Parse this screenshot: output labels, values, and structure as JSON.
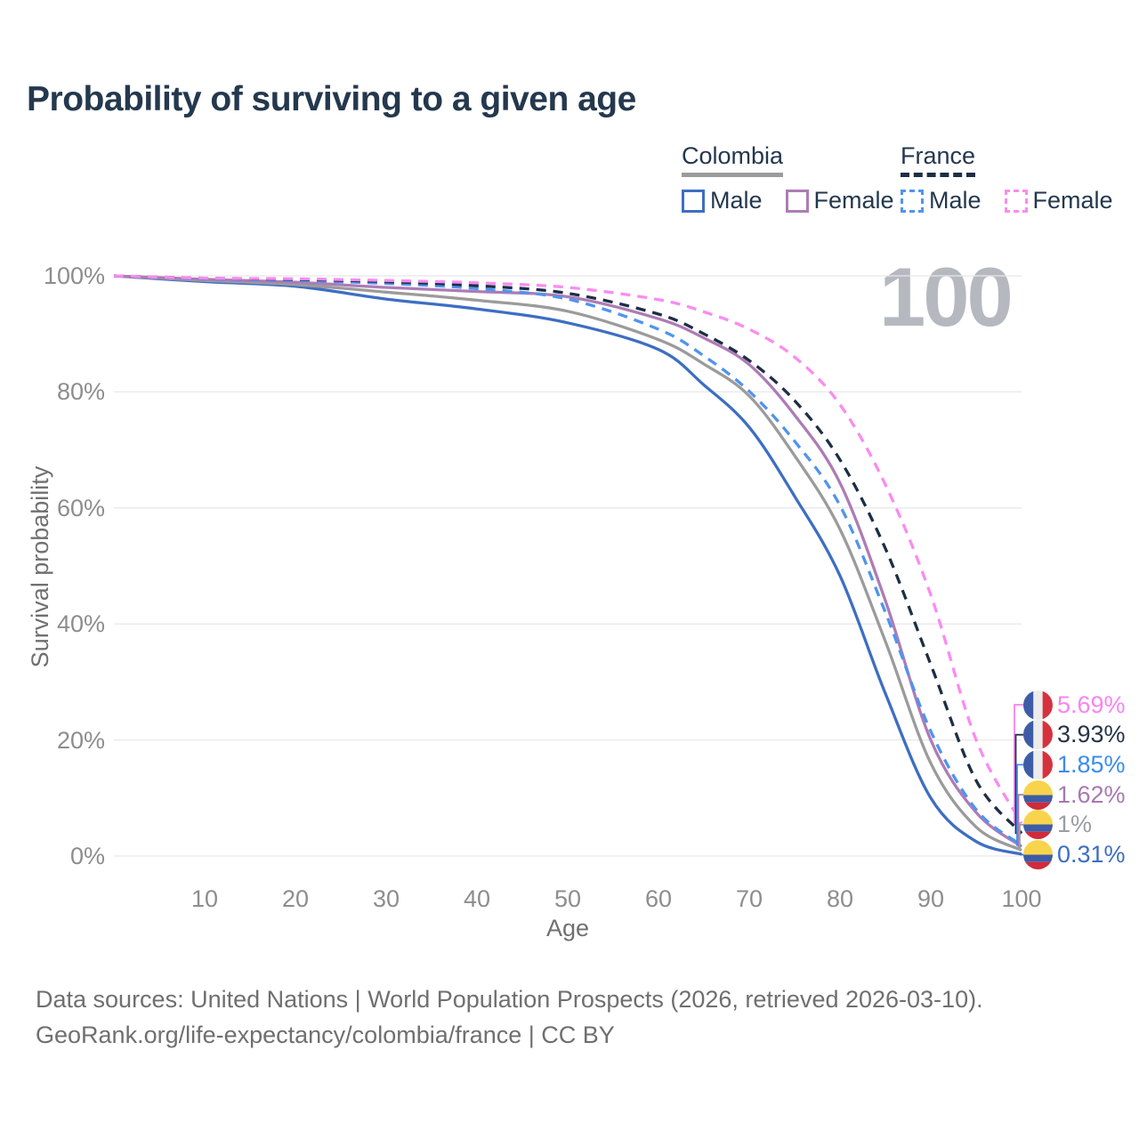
{
  "title": "Probability of surviving to a given age",
  "watermark": "100",
  "legend": {
    "groups": [
      {
        "label": "Colombia",
        "underline_color": "#9b9b9b",
        "underline_dashed": false,
        "items": [
          {
            "label": "Male",
            "color": "#3d6ec3",
            "dashed": false
          },
          {
            "label": "Female",
            "color": "#ad7cb5",
            "dashed": false
          }
        ]
      },
      {
        "label": "France",
        "underline_color": "#1d2e45",
        "underline_dashed": true,
        "items": [
          {
            "label": "Male",
            "color": "#4f94f0",
            "dashed": true
          },
          {
            "label": "Female",
            "color": "#fb8bf1",
            "dashed": true
          }
        ]
      }
    ]
  },
  "chart_data": {
    "type": "line",
    "title": "Probability of surviving to a given age",
    "xlabel": "Age",
    "ylabel": "Survival probability",
    "xlim": [
      0,
      100
    ],
    "ylim": [
      0,
      100
    ],
    "grid": "horizontal-only",
    "legend_position": "top-right",
    "x_ticks": [
      10,
      20,
      30,
      40,
      50,
      60,
      70,
      80,
      90,
      100
    ],
    "y_tick_values": [
      0,
      20,
      40,
      60,
      80,
      100
    ],
    "y_tick_labels": [
      "0%",
      "20%",
      "40%",
      "60%",
      "80%",
      "100%"
    ],
    "x": [
      0,
      10,
      20,
      30,
      40,
      50,
      60,
      65,
      70,
      75,
      80,
      85,
      90,
      95,
      100
    ],
    "series": [
      {
        "name": "Colombia Male",
        "country": "Colombia",
        "sex": "Male",
        "color": "#3d6ec3",
        "dashed": false,
        "values": [
          100,
          99.0,
          98.2,
          96.0,
          94.3,
          91.9,
          87.3,
          81.2,
          73.9,
          62.0,
          48.3,
          28.0,
          10.0,
          2.5,
          0.31
        ]
      },
      {
        "name": "Colombia Total",
        "country": "Colombia",
        "sex": "Both",
        "color": "#9b9b9b",
        "dashed": false,
        "values": [
          100,
          99.2,
          98.5,
          97.2,
          95.8,
          93.9,
          89.0,
          84.8,
          79.3,
          69.0,
          56.3,
          37.0,
          16.0,
          5.0,
          1.0
        ]
      },
      {
        "name": "Colombia Female",
        "country": "Colombia",
        "sex": "Female",
        "color": "#ad7cb5",
        "dashed": false,
        "values": [
          100,
          99.4,
          98.9,
          98.0,
          97.3,
          96.4,
          92.6,
          89.3,
          84.7,
          76.0,
          64.3,
          44.0,
          20.0,
          7.5,
          1.62
        ]
      },
      {
        "name": "France Male",
        "country": "France",
        "sex": "Male",
        "color": "#4f94f0",
        "dashed": true,
        "values": [
          100,
          99.5,
          99.2,
          98.7,
          97.8,
          96.0,
          90.8,
          86.2,
          80.1,
          71.5,
          60.4,
          42.0,
          21.5,
          8.0,
          1.85
        ]
      },
      {
        "name": "France Total",
        "country": "France",
        "sex": "Both",
        "color": "#1d2e45",
        "dashed": true,
        "values": [
          100,
          99.6,
          99.4,
          99.0,
          98.3,
          97.0,
          93.4,
          90.0,
          85.4,
          78.5,
          68.3,
          53.0,
          33.0,
          13.0,
          3.93
        ]
      },
      {
        "name": "France Female",
        "country": "France",
        "sex": "Female",
        "color": "#fb8bf1",
        "dashed": true,
        "values": [
          100,
          99.6,
          99.5,
          99.2,
          98.8,
          98.0,
          95.9,
          93.8,
          90.8,
          86.0,
          77.8,
          64.0,
          45.0,
          20.0,
          5.69
        ]
      }
    ],
    "end_labels": [
      {
        "flag": "france",
        "label": "5.69%",
        "value": 5.69,
        "color": "#f884ef",
        "series": "France Female"
      },
      {
        "flag": "france",
        "label": "3.93%",
        "value": 3.93,
        "color": "#253447",
        "series": "France Total"
      },
      {
        "flag": "france",
        "label": "1.85%",
        "value": 1.85,
        "color": "#3b8bf0",
        "series": "France Male"
      },
      {
        "flag": "colombia",
        "label": "1.62%",
        "value": 1.62,
        "color": "#a878b0",
        "series": "Colombia Female"
      },
      {
        "flag": "colombia",
        "label": "1%",
        "value": 1.0,
        "color": "#9b9ea2",
        "series": "Colombia Total"
      },
      {
        "flag": "colombia",
        "label": "0.31%",
        "value": 0.31,
        "color": "#3d6ec3",
        "series": "Colombia Male"
      }
    ]
  },
  "flag_colors": {
    "france": {
      "blue": "#3e5ca6",
      "white": "#ececec",
      "red": "#d6323e"
    },
    "colombia": {
      "yellow": "#f8d44c",
      "blue": "#3e5ca6",
      "red": "#cf2b3a"
    }
  },
  "grid_color": "#e8e8e8",
  "footer": {
    "line1": "Data sources: United Nations | World Population Prospects (2026, retrieved 2026-03-10).",
    "line2": "GeoRank.org/life-expectancy/colombia/france | CC BY"
  }
}
